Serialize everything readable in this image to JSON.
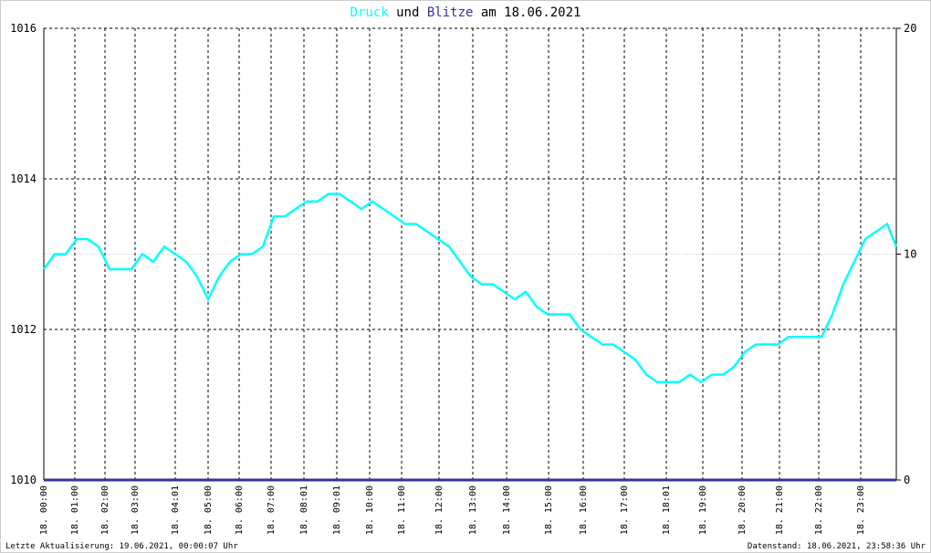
{
  "chart_data": {
    "type": "line",
    "title_join": "und",
    "title_date": "am 18.06.2021",
    "footer_left": "Letzte Aktualisierung: 19.06.2021, 00:00:07 Uhr",
    "footer_right": "Datenstand: 18.06.2021, 23:58:36 Uhr",
    "x": [
      0,
      12,
      24,
      36,
      48,
      60,
      72,
      84,
      96,
      108,
      120,
      132,
      144,
      156,
      168,
      180,
      192,
      204,
      216,
      228,
      240,
      252,
      264,
      276,
      288,
      300,
      312,
      324,
      336,
      348,
      360,
      372,
      384,
      396,
      408,
      420,
      432,
      444,
      456,
      468,
      480,
      492,
      504,
      516,
      528,
      540,
      552,
      564,
      576,
      588,
      600,
      612,
      624,
      636,
      648,
      660,
      672,
      684,
      696,
      708,
      720,
      732,
      744,
      756,
      768,
      780,
      792,
      804,
      816,
      828,
      840,
      852,
      864,
      876,
      888,
      900,
      912,
      924,
      934
    ],
    "series": [
      {
        "name": "Druck",
        "color": "#00ffff",
        "values": [
          1012.8,
          1013.0,
          1013.0,
          1013.2,
          1013.2,
          1013.1,
          1012.8,
          1012.8,
          1012.8,
          1013.0,
          1012.9,
          1013.1,
          1013.0,
          1012.9,
          1012.7,
          1012.4,
          1012.7,
          1012.9,
          1013.0,
          1013.0,
          1013.1,
          1013.5,
          1013.5,
          1013.6,
          1013.7,
          1013.7,
          1013.8,
          1013.8,
          1013.7,
          1013.6,
          1013.7,
          1013.6,
          1013.5,
          1013.4,
          1013.4,
          1013.3,
          1013.2,
          1013.1,
          1012.9,
          1012.7,
          1012.6,
          1012.6,
          1012.5,
          1012.4,
          1012.5,
          1012.3,
          1012.2,
          1012.2,
          1012.2,
          1012.0,
          1011.9,
          1011.8,
          1011.8,
          1011.7,
          1011.6,
          1011.4,
          1011.3,
          1011.3,
          1011.3,
          1011.4,
          1011.3,
          1011.4,
          1011.4,
          1011.5,
          1011.7,
          1011.8,
          1011.8,
          1011.8,
          1011.9,
          1011.9,
          1011.9,
          1011.9,
          1012.2,
          1012.6,
          1012.9,
          1013.2,
          1013.3,
          1013.4,
          1013.1
        ]
      },
      {
        "name": "Blitze",
        "color": "#333399",
        "axis": "y2",
        "values": [
          0,
          0,
          0,
          0,
          0,
          0,
          0,
          0,
          0,
          0,
          0,
          0,
          0,
          0,
          0,
          0,
          0,
          0,
          0,
          0,
          0,
          0,
          0,
          0,
          0,
          0,
          0,
          0,
          0,
          0,
          0,
          0,
          0,
          0,
          0,
          0,
          0,
          0,
          0,
          0,
          0,
          0,
          0,
          0,
          0,
          0,
          0,
          0,
          0,
          0,
          0,
          0,
          0,
          0,
          0,
          0,
          0,
          0,
          0,
          0,
          0,
          0,
          0,
          0,
          0,
          0,
          0,
          0,
          0,
          0,
          0,
          0,
          0,
          0,
          0,
          0,
          0,
          0,
          0
        ]
      }
    ],
    "xlim": [
      0,
      934
    ],
    "xticks": [
      {
        "value": 0,
        "label": "18. 00:00"
      },
      {
        "value": 34,
        "label": "18. 01:00"
      },
      {
        "value": 67,
        "label": "18. 02:00"
      },
      {
        "value": 100,
        "label": "18. 03:00"
      },
      {
        "value": 144,
        "label": "18. 04:01"
      },
      {
        "value": 180,
        "label": "18. 05:00"
      },
      {
        "value": 214,
        "label": "18. 06:00"
      },
      {
        "value": 249,
        "label": "18. 07:00"
      },
      {
        "value": 285,
        "label": "18. 08:01"
      },
      {
        "value": 321,
        "label": "18. 09:01"
      },
      {
        "value": 357,
        "label": "18. 10:00"
      },
      {
        "value": 392,
        "label": "18. 11:00"
      },
      {
        "value": 433,
        "label": "18. 12:00"
      },
      {
        "value": 470,
        "label": "18. 13:00"
      },
      {
        "value": 507,
        "label": "18. 14:00"
      },
      {
        "value": 553,
        "label": "18. 15:00"
      },
      {
        "value": 591,
        "label": "18. 16:00"
      },
      {
        "value": 636,
        "label": "18. 17:00"
      },
      {
        "value": 682,
        "label": "18. 18:01"
      },
      {
        "value": 722,
        "label": "18. 19:00"
      },
      {
        "value": 765,
        "label": "18. 20:00"
      },
      {
        "value": 806,
        "label": "18. 21:00"
      },
      {
        "value": 849,
        "label": "18. 22:00"
      },
      {
        "value": 895,
        "label": "18. 23:00"
      }
    ],
    "ylim": [
      1010,
      1016
    ],
    "yticks": [
      1010,
      1012,
      1014,
      1016
    ],
    "y2lim": [
      0,
      20
    ],
    "y2ticks": [
      0,
      10,
      20
    ],
    "grid": true
  }
}
